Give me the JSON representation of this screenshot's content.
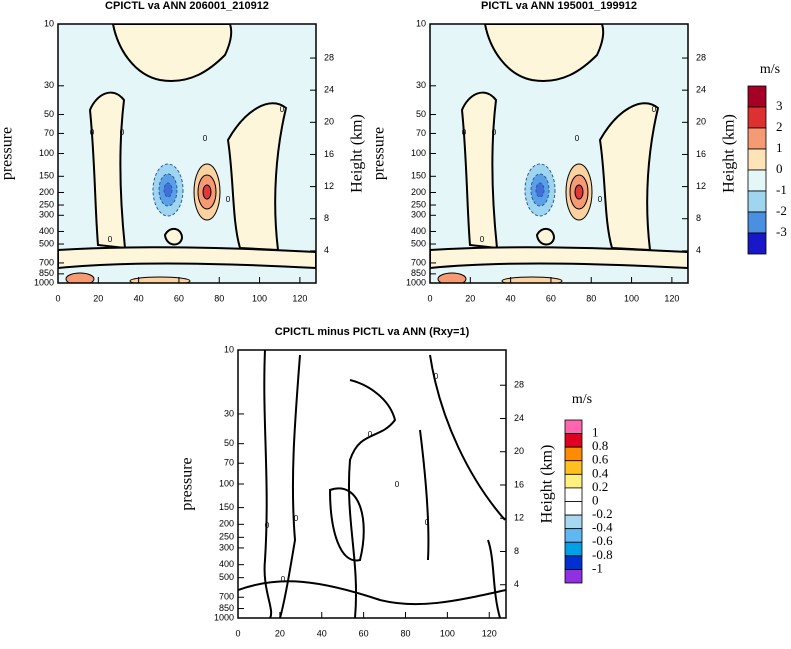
{
  "chart_data": [
    {
      "type": "contour",
      "title": "CPICTL va ANN 206001_210912",
      "ylabel": "pressure",
      "y2label": "Height (km)",
      "ylog": true,
      "xlim": [
        0,
        128
      ],
      "xticks": [
        0,
        20,
        40,
        60,
        80,
        100,
        120
      ],
      "ylim": [
        1000,
        10
      ],
      "yticks": [
        10,
        30,
        50,
        70,
        100,
        150,
        200,
        250,
        300,
        400,
        500,
        700,
        850,
        1000
      ],
      "y2ticks": [
        4,
        8,
        12,
        16,
        20,
        24,
        28
      ],
      "contour_label": 0
    },
    {
      "type": "contour",
      "title": "PICTL va ANN 195001_199912",
      "ylabel": "pressure",
      "y2label": "Height (km)",
      "ylog": true,
      "xlim": [
        0,
        128
      ],
      "xticks": [
        0,
        20,
        40,
        60,
        80,
        100,
        120
      ],
      "ylim": [
        1000,
        10
      ],
      "yticks": [
        10,
        30,
        50,
        70,
        100,
        150,
        200,
        250,
        300,
        400,
        500,
        700,
        850,
        1000
      ],
      "y2ticks": [
        4,
        8,
        12,
        16,
        20,
        24,
        28
      ],
      "contour_label": 0,
      "colorbar": {
        "label": "m/s",
        "levels": [
          3,
          2,
          1,
          0,
          -1,
          -2,
          -3
        ],
        "colors": [
          "#a50026",
          "#dd3030",
          "#f59a72",
          "#fde3b8",
          "#e4f6f7",
          "#9fd5ef",
          "#4a8fe0",
          "#1818c8"
        ]
      }
    },
    {
      "type": "contour",
      "title": "CPICTL minus PICTL va ANN (Rxy=1)",
      "ylabel": "pressure",
      "y2label": "Height (km)",
      "ylog": true,
      "xlim": [
        0,
        128
      ],
      "xticks": [
        0,
        20,
        40,
        60,
        80,
        100,
        120
      ],
      "ylim": [
        1000,
        10
      ],
      "yticks": [
        10,
        30,
        50,
        70,
        100,
        150,
        200,
        250,
        300,
        400,
        500,
        700,
        850,
        1000
      ],
      "y2ticks": [
        4,
        8,
        12,
        16,
        20,
        24,
        28
      ],
      "contour_label": 0,
      "colorbar": {
        "label": "m/s",
        "levels": [
          1,
          0.8,
          0.6,
          0.4,
          0.2,
          0,
          -0.2,
          -0.4,
          -0.6,
          -0.8,
          -1
        ],
        "colors": [
          "#ff66b0",
          "#e00020",
          "#ff8c00",
          "#ffc020",
          "#fff080",
          "#ffffff",
          "#ffffff",
          "#a8d8f0",
          "#60b8f0",
          "#00a0e8",
          "#0030d0",
          "#9030e0"
        ]
      }
    }
  ]
}
